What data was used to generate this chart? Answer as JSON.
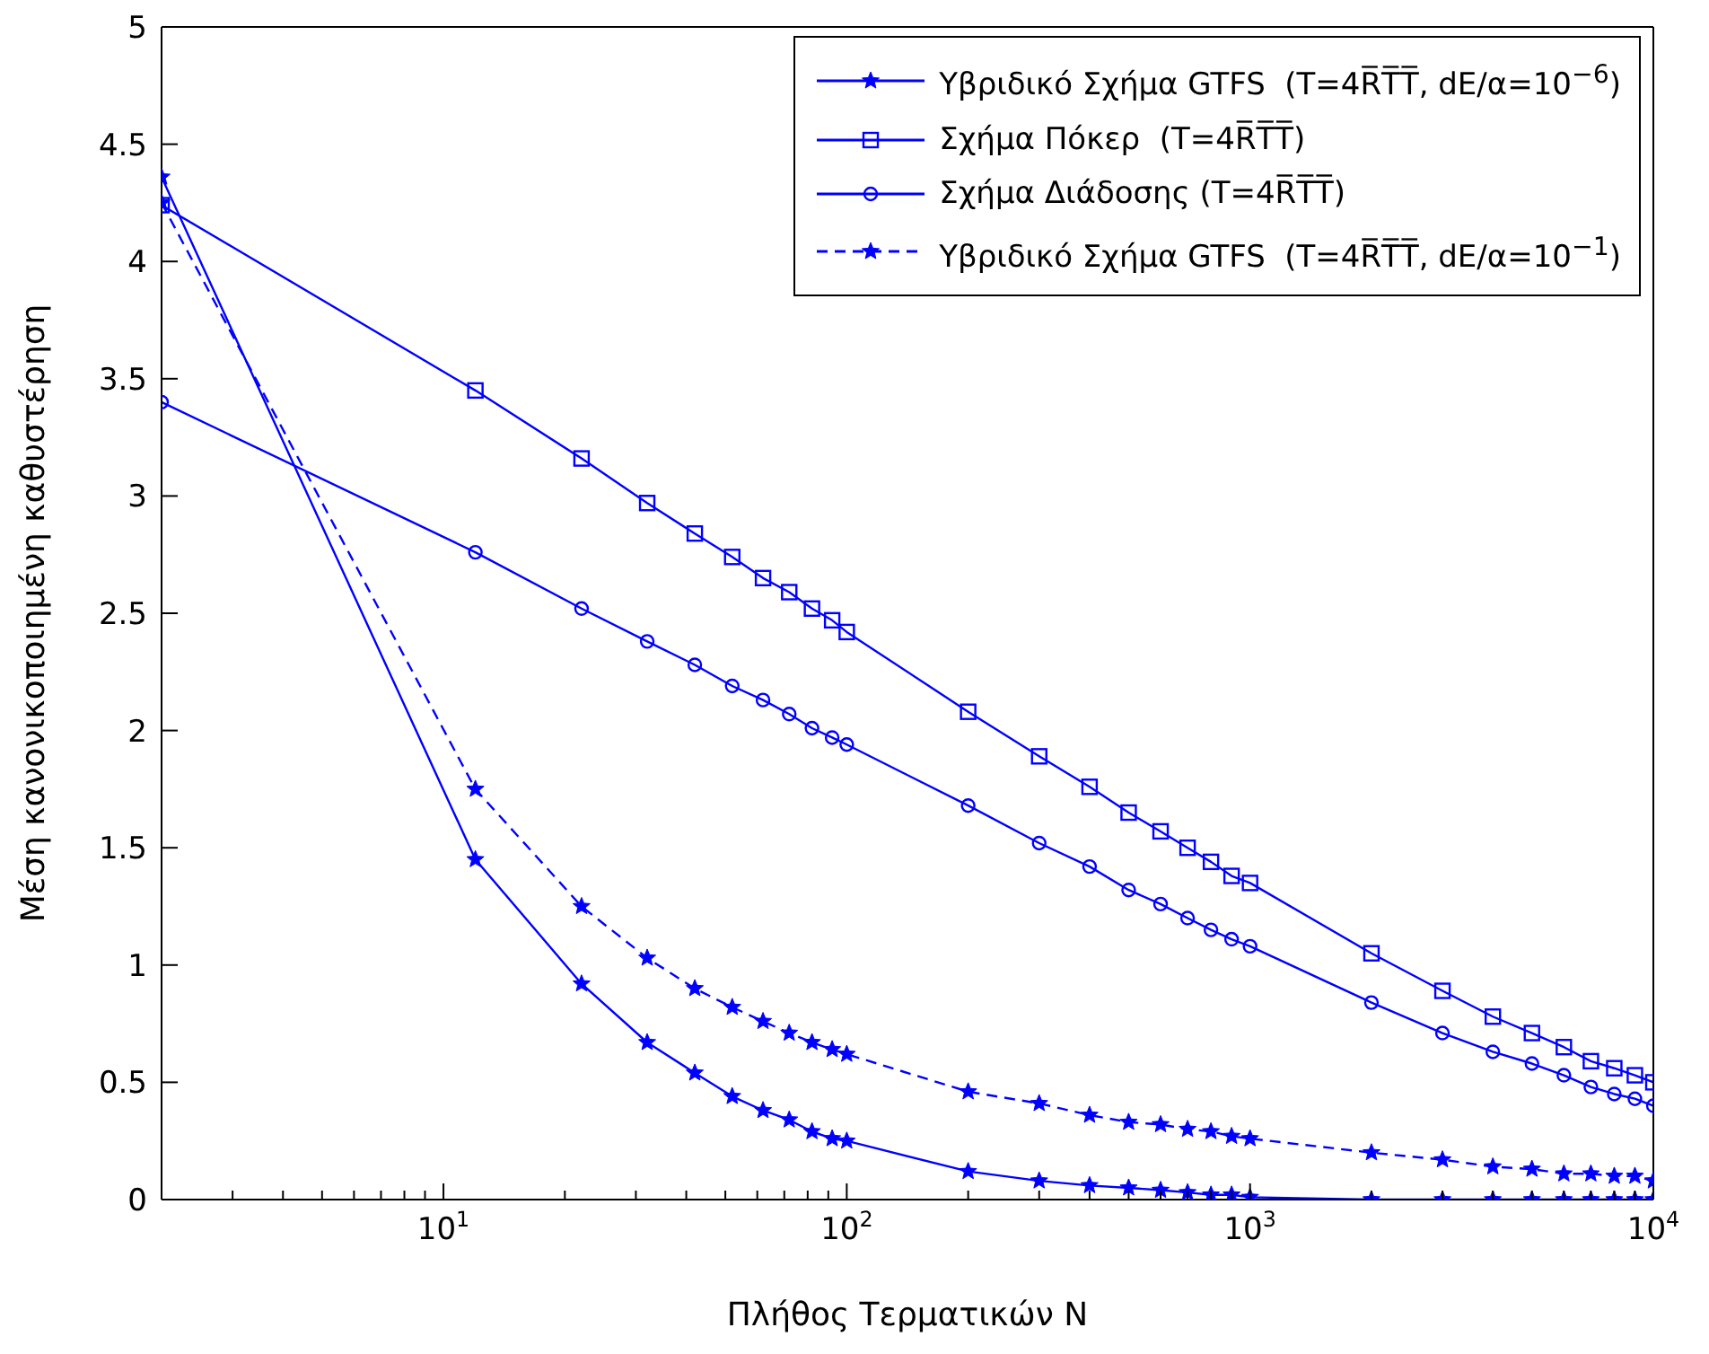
{
  "chart_data": {
    "type": "line",
    "xlabel": "Πλήθος Τερματικών N",
    "ylabel": "Μέση κανονικοποιημένη καθυστέρηση",
    "log": "x",
    "x": [
      2,
      12,
      22,
      32,
      42,
      52,
      62,
      72,
      82,
      92,
      100,
      200,
      300,
      400,
      500,
      600,
      700,
      800,
      900,
      1000,
      2000,
      3000,
      4000,
      5000,
      6000,
      7000,
      8000,
      9000,
      10000
    ],
    "xlim": [
      2,
      10000
    ],
    "xticks": [
      {
        "value": 3,
        "label": null
      },
      {
        "value": 4,
        "label": null
      },
      {
        "value": 5,
        "label": null
      },
      {
        "value": 6,
        "label": null
      },
      {
        "value": 7,
        "label": null
      },
      {
        "value": 8,
        "label": null
      },
      {
        "value": 9,
        "label": null
      },
      {
        "value": 10,
        "label": "10$^{1}$"
      },
      {
        "value": 20,
        "label": null
      },
      {
        "value": 30,
        "label": null
      },
      {
        "value": 40,
        "label": null
      },
      {
        "value": 50,
        "label": null
      },
      {
        "value": 60,
        "label": null
      },
      {
        "value": 70,
        "label": null
      },
      {
        "value": 80,
        "label": null
      },
      {
        "value": 90,
        "label": null
      },
      {
        "value": 100,
        "label": "10$^{2}$"
      },
      {
        "value": 200,
        "label": null
      },
      {
        "value": 300,
        "label": null
      },
      {
        "value": 400,
        "label": null
      },
      {
        "value": 500,
        "label": null
      },
      {
        "value": 600,
        "label": null
      },
      {
        "value": 700,
        "label": null
      },
      {
        "value": 800,
        "label": null
      },
      {
        "value": 900,
        "label": null
      },
      {
        "value": 1000,
        "label": "10$^{3}$"
      },
      {
        "value": 2000,
        "label": null
      },
      {
        "value": 3000,
        "label": null
      },
      {
        "value": 4000,
        "label": null
      },
      {
        "value": 5000,
        "label": null
      },
      {
        "value": 6000,
        "label": null
      },
      {
        "value": 7000,
        "label": null
      },
      {
        "value": 8000,
        "label": null
      },
      {
        "value": 9000,
        "label": null
      },
      {
        "value": 10000,
        "label": "10$^{4}$"
      }
    ],
    "ylim": [
      0,
      5
    ],
    "yticks": [
      0,
      0.5,
      1,
      1.5,
      2,
      2.5,
      3,
      3.5,
      4,
      4.5,
      5
    ],
    "grid": false,
    "legend": "top right",
    "series": [
      {
        "name": "Υβριδικό Σχήμα GTFS  (T=4R̅T̅T̅, dE/α=10$^{−6}$)",
        "color": "#0000ff",
        "marker": "star",
        "line_style": "solid",
        "values": [
          4.36,
          1.45,
          0.92,
          0.67,
          0.54,
          0.44,
          0.38,
          0.34,
          0.29,
          0.26,
          0.25,
          0.12,
          0.08,
          0.06,
          0.05,
          0.04,
          0.03,
          0.02,
          0.02,
          0.01,
          0,
          0,
          0,
          0,
          0,
          0,
          0,
          0,
          0
        ]
      },
      {
        "name": "Σχήμα Πόκερ  (T=4R̅T̅T̅)",
        "color": "#0000ff",
        "marker": "square",
        "line_style": "solid",
        "values": [
          4.24,
          3.45,
          3.16,
          2.97,
          2.84,
          2.74,
          2.65,
          2.59,
          2.52,
          2.47,
          2.42,
          2.08,
          1.89,
          1.76,
          1.65,
          1.57,
          1.5,
          1.44,
          1.38,
          1.35,
          1.05,
          0.89,
          0.78,
          0.71,
          0.65,
          0.59,
          0.56,
          0.53,
          0.5
        ]
      },
      {
        "name": "Σχήμα Διάδοσης (T=4R̅T̅T̅)",
        "color": "#0000ff",
        "marker": "circle",
        "line_style": "solid",
        "values": [
          3.4,
          2.76,
          2.52,
          2.38,
          2.28,
          2.19,
          2.13,
          2.07,
          2.01,
          1.97,
          1.94,
          1.68,
          1.52,
          1.42,
          1.32,
          1.26,
          1.2,
          1.15,
          1.11,
          1.08,
          0.84,
          0.71,
          0.63,
          0.58,
          0.53,
          0.48,
          0.45,
          0.43,
          0.4
        ]
      },
      {
        "name": "Υβριδικό Σχήμα GTFS  (T=4R̅T̅T̅, dE/α=10$^{−1}$)",
        "color": "#0000ff",
        "marker": "star",
        "line_style": "dashed",
        "values": [
          4.25,
          1.75,
          1.25,
          1.03,
          0.9,
          0.82,
          0.76,
          0.71,
          0.67,
          0.64,
          0.62,
          0.46,
          0.41,
          0.36,
          0.33,
          0.32,
          0.3,
          0.29,
          0.27,
          0.26,
          0.2,
          0.17,
          0.14,
          0.13,
          0.11,
          0.11,
          0.1,
          0.1,
          0.08
        ]
      }
    ]
  }
}
